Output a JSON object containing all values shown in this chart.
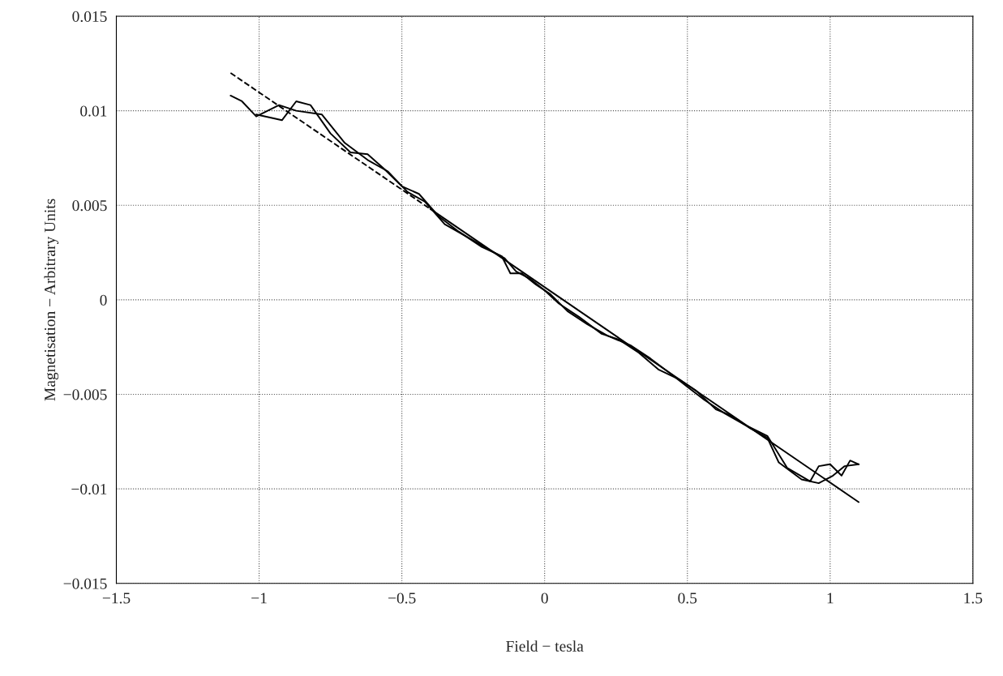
{
  "chart_data": {
    "type": "line",
    "xlabel": "Field − tesla",
    "ylabel": "Magnetisation − Arbitrary Units",
    "xlim": [
      -1.5,
      1.5
    ],
    "xticks": [
      {
        "value": -1.5,
        "label": "−1.5"
      },
      {
        "value": -1,
        "label": "−1"
      },
      {
        "value": -0.5,
        "label": "−0.5"
      },
      0,
      0.5,
      1,
      1.5
    ],
    "ylim": [
      -0.015,
      0.015
    ],
    "yticks": [
      {
        "value": -0.015,
        "label": "−0.015"
      },
      {
        "value": -0.01,
        "label": "−0.01"
      },
      {
        "value": -0.005,
        "label": "−0.005"
      },
      0,
      0.005,
      0.01,
      0.015
    ],
    "grid": true,
    "series": [
      {
        "color": "#000000",
        "line_style": "solid",
        "x": [
          -1.1,
          -1.06,
          -1.01,
          -0.93,
          -0.87,
          -0.78,
          -0.7,
          -0.62,
          -0.55,
          -0.48,
          -0.42,
          -0.35,
          -0.28,
          -0.2,
          -0.14,
          -0.1,
          -0.05,
          0.0,
          0.05,
          0.12,
          0.2,
          0.26,
          0.33,
          0.4,
          0.47,
          0.53,
          0.6,
          0.65,
          0.72,
          0.78,
          0.82,
          0.9,
          0.96,
          1.01,
          1.05,
          1.1
        ],
        "values": [
          0.0108,
          0.0105,
          0.0097,
          0.0103,
          0.01,
          0.0098,
          0.0083,
          0.0074,
          0.0068,
          0.0057,
          0.0052,
          0.004,
          0.0034,
          0.0027,
          0.0022,
          0.0015,
          0.0011,
          0.0005,
          -0.0002,
          -0.0009,
          -0.0018,
          -0.0021,
          -0.0028,
          -0.0037,
          -0.0042,
          -0.0048,
          -0.0058,
          -0.0061,
          -0.0068,
          -0.0073,
          -0.0086,
          -0.0095,
          -0.0097,
          -0.0093,
          -0.0088,
          -0.0087
        ]
      },
      {
        "color": "#000000",
        "line_style": "solid",
        "x": [
          -1.01,
          -0.92,
          -0.87,
          -0.82,
          -0.75,
          -0.68,
          -0.62,
          -0.56,
          -0.5,
          -0.44,
          -0.37,
          -0.3,
          -0.22,
          -0.15,
          -0.12,
          -0.08,
          -0.03,
          0.02,
          0.08,
          0.15,
          0.22,
          0.3,
          0.37,
          0.44,
          0.5,
          0.56,
          0.63,
          0.7,
          0.78,
          0.85,
          0.93,
          0.96,
          1.0,
          1.04,
          1.07,
          1.1
        ],
        "values": [
          0.0098,
          0.0095,
          0.0105,
          0.0103,
          0.0088,
          0.0078,
          0.0077,
          0.0069,
          0.006,
          0.0056,
          0.0044,
          0.0036,
          0.0028,
          0.0023,
          0.0014,
          0.0014,
          0.0008,
          0.0003,
          -0.0006,
          -0.0013,
          -0.0019,
          -0.0024,
          -0.0031,
          -0.0039,
          -0.0046,
          -0.0053,
          -0.006,
          -0.0066,
          -0.0072,
          -0.0089,
          -0.0096,
          -0.0088,
          -0.0087,
          -0.0093,
          -0.0085,
          -0.0087
        ]
      },
      {
        "color": "#000000",
        "line_style": "dashed",
        "x": [
          -1.1,
          -0.4
        ],
        "values": [
          0.012,
          0.0048
        ]
      },
      {
        "color": "#000000",
        "line_style": "solid",
        "x": [
          -0.4,
          1.1
        ],
        "values": [
          0.0048,
          -0.0107
        ]
      }
    ]
  }
}
